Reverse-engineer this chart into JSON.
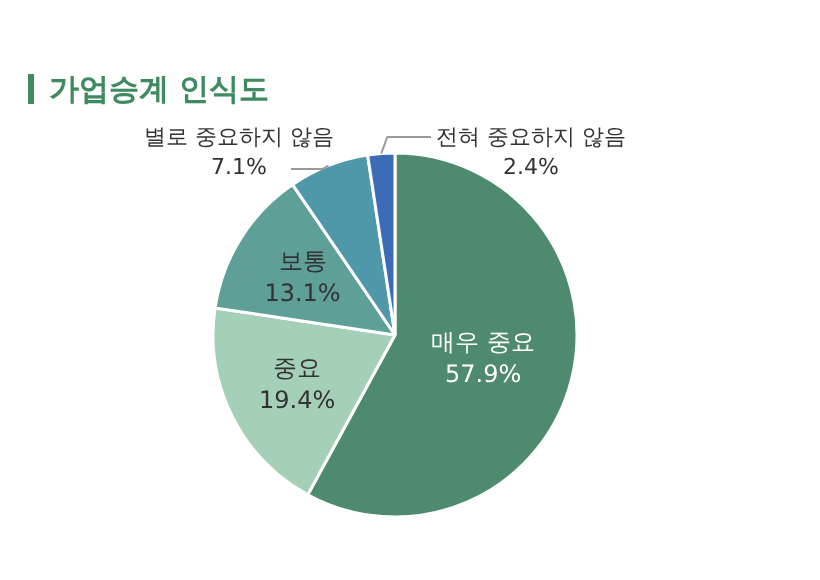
{
  "chart_data": {
    "type": "pie",
    "title": "가업승계 인식도",
    "categories": [
      "매우 중요",
      "중요",
      "보통",
      "별로 중요하지 않음",
      "전혀 중요하지 않음"
    ],
    "values": [
      57.9,
      19.4,
      13.1,
      7.1,
      2.4
    ],
    "value_labels": [
      "57.9%",
      "19.4%",
      "13.1%",
      "7.1%",
      "2.4%"
    ],
    "colors": [
      "#4e8a6e",
      "#a5d0b8",
      "#5e9f98",
      "#4f98a9",
      "#3b6cb5"
    ]
  }
}
